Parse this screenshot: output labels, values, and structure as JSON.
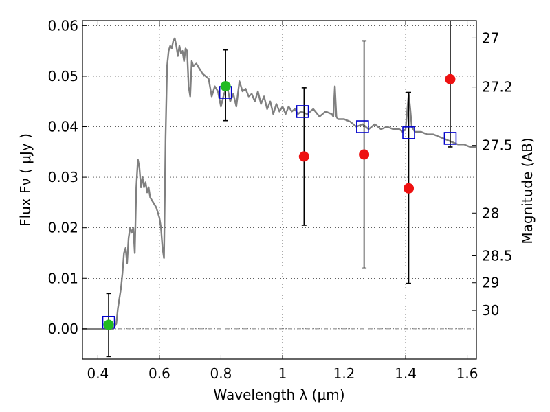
{
  "chart_data": {
    "type": "line",
    "xlabel": "Wavelength  λ (μm)",
    "ylabel": "Flux  Fν  ( μJy )",
    "y2label": "Magnitude (AB)",
    "xlim": [
      0.35,
      1.63
    ],
    "ylim": [
      -0.006,
      0.061
    ],
    "grid": true,
    "x_ticks": [
      {
        "value": 0.4,
        "label": "0.4"
      },
      {
        "value": 0.6,
        "label": "0.6"
      },
      {
        "value": 0.8,
        "label": "0.8"
      },
      {
        "value": 1.0,
        "label": "1"
      },
      {
        "value": 1.2,
        "label": "1.2"
      },
      {
        "value": 1.4,
        "label": "1.4"
      },
      {
        "value": 1.6,
        "label": "1.6"
      }
    ],
    "y_ticks": [
      {
        "value": 0.0,
        "label": "0.00"
      },
      {
        "value": 0.01,
        "label": "0.01"
      },
      {
        "value": 0.02,
        "label": "0.02"
      },
      {
        "value": 0.03,
        "label": "0.03"
      },
      {
        "value": 0.04,
        "label": "0.04"
      },
      {
        "value": 0.05,
        "label": "0.05"
      },
      {
        "value": 0.06,
        "label": "0.06"
      }
    ],
    "y2_ticks": [
      {
        "value": 27,
        "label": "27"
      },
      {
        "value": 27.2,
        "label": "27.2"
      },
      {
        "value": 27.5,
        "label": "27.5"
      },
      {
        "value": 28,
        "label": "28"
      },
      {
        "value": 28.5,
        "label": "28.5"
      },
      {
        "value": 29,
        "label": "29"
      },
      {
        "value": 30,
        "label": "30"
      }
    ],
    "series": [
      {
        "kind": "line",
        "color": "#808080",
        "points": [
          [
            0.35,
            0.0
          ],
          [
            0.45,
            0.0
          ],
          [
            0.46,
            0.001
          ],
          [
            0.465,
            0.004
          ],
          [
            0.47,
            0.006
          ],
          [
            0.475,
            0.008
          ],
          [
            0.48,
            0.011
          ],
          [
            0.485,
            0.015
          ],
          [
            0.49,
            0.016
          ],
          [
            0.495,
            0.013
          ],
          [
            0.5,
            0.018
          ],
          [
            0.505,
            0.02
          ],
          [
            0.51,
            0.019
          ],
          [
            0.515,
            0.02
          ],
          [
            0.52,
            0.015
          ],
          [
            0.525,
            0.028
          ],
          [
            0.53,
            0.0335
          ],
          [
            0.535,
            0.032
          ],
          [
            0.54,
            0.028
          ],
          [
            0.545,
            0.03
          ],
          [
            0.55,
            0.028
          ],
          [
            0.555,
            0.029
          ],
          [
            0.56,
            0.027
          ],
          [
            0.565,
            0.028
          ],
          [
            0.57,
            0.026
          ],
          [
            0.58,
            0.025
          ],
          [
            0.59,
            0.024
          ],
          [
            0.6,
            0.022
          ],
          [
            0.605,
            0.02
          ],
          [
            0.61,
            0.016
          ],
          [
            0.615,
            0.014
          ],
          [
            0.62,
            0.038
          ],
          [
            0.625,
            0.052
          ],
          [
            0.63,
            0.055
          ],
          [
            0.635,
            0.056
          ],
          [
            0.64,
            0.0555
          ],
          [
            0.645,
            0.057
          ],
          [
            0.65,
            0.0575
          ],
          [
            0.655,
            0.056
          ],
          [
            0.66,
            0.054
          ],
          [
            0.665,
            0.056
          ],
          [
            0.67,
            0.0545
          ],
          [
            0.675,
            0.055
          ],
          [
            0.68,
            0.053
          ],
          [
            0.685,
            0.0555
          ],
          [
            0.69,
            0.055
          ],
          [
            0.695,
            0.048
          ],
          [
            0.7,
            0.046
          ],
          [
            0.705,
            0.053
          ],
          [
            0.71,
            0.052
          ],
          [
            0.72,
            0.0525
          ],
          [
            0.73,
            0.0515
          ],
          [
            0.74,
            0.0505
          ],
          [
            0.75,
            0.05
          ],
          [
            0.76,
            0.0495
          ],
          [
            0.77,
            0.046
          ],
          [
            0.78,
            0.048
          ],
          [
            0.79,
            0.047
          ],
          [
            0.8,
            0.044
          ],
          [
            0.81,
            0.0465
          ],
          [
            0.82,
            0.048
          ],
          [
            0.83,
            0.045
          ],
          [
            0.84,
            0.0465
          ],
          [
            0.85,
            0.044
          ],
          [
            0.86,
            0.049
          ],
          [
            0.87,
            0.047
          ],
          [
            0.88,
            0.0475
          ],
          [
            0.89,
            0.046
          ],
          [
            0.9,
            0.0465
          ],
          [
            0.91,
            0.045
          ],
          [
            0.92,
            0.047
          ],
          [
            0.93,
            0.0445
          ],
          [
            0.94,
            0.046
          ],
          [
            0.95,
            0.0435
          ],
          [
            0.96,
            0.045
          ],
          [
            0.97,
            0.0425
          ],
          [
            0.98,
            0.0445
          ],
          [
            0.99,
            0.043
          ],
          [
            1.0,
            0.044
          ],
          [
            1.01,
            0.0425
          ],
          [
            1.02,
            0.044
          ],
          [
            1.03,
            0.043
          ],
          [
            1.04,
            0.0435
          ],
          [
            1.05,
            0.0425
          ],
          [
            1.06,
            0.043
          ],
          [
            1.08,
            0.0425
          ],
          [
            1.1,
            0.0435
          ],
          [
            1.12,
            0.042
          ],
          [
            1.14,
            0.043
          ],
          [
            1.16,
            0.0425
          ],
          [
            1.165,
            0.042
          ],
          [
            1.17,
            0.048
          ],
          [
            1.175,
            0.042
          ],
          [
            1.18,
            0.0415
          ],
          [
            1.2,
            0.0415
          ],
          [
            1.22,
            0.041
          ],
          [
            1.24,
            0.04
          ],
          [
            1.26,
            0.0405
          ],
          [
            1.28,
            0.0395
          ],
          [
            1.3,
            0.0405
          ],
          [
            1.32,
            0.0395
          ],
          [
            1.34,
            0.04
          ],
          [
            1.36,
            0.0395
          ],
          [
            1.38,
            0.0395
          ],
          [
            1.39,
            0.039
          ],
          [
            1.4,
            0.0395
          ],
          [
            1.405,
            0.043
          ],
          [
            1.41,
            0.0465
          ],
          [
            1.415,
            0.0435
          ],
          [
            1.42,
            0.04
          ],
          [
            1.43,
            0.039
          ],
          [
            1.45,
            0.039
          ],
          [
            1.47,
            0.0385
          ],
          [
            1.49,
            0.0385
          ],
          [
            1.51,
            0.038
          ],
          [
            1.53,
            0.0375
          ],
          [
            1.55,
            0.037
          ],
          [
            1.57,
            0.0365
          ],
          [
            1.59,
            0.0365
          ],
          [
            1.61,
            0.036
          ],
          [
            1.63,
            0.036
          ]
        ]
      },
      {
        "kind": "open-square",
        "color": "#0000cc",
        "points": [
          [
            0.435,
            0.0013
          ],
          [
            0.815,
            0.0468
          ],
          [
            1.065,
            0.043
          ],
          [
            1.26,
            0.04
          ],
          [
            1.41,
            0.0388
          ],
          [
            1.545,
            0.0377
          ]
        ]
      },
      {
        "kind": "filled-circle",
        "color": "#ee1111",
        "points": [
          [
            1.07,
            0.0341
          ],
          [
            1.265,
            0.0345
          ],
          [
            1.41,
            0.0278
          ],
          [
            1.545,
            0.0494
          ]
        ]
      },
      {
        "kind": "filled-circle",
        "color": "#22bb22",
        "points": [
          [
            0.435,
            0.0008
          ],
          [
            0.815,
            0.048
          ]
        ]
      },
      {
        "kind": "errorbar",
        "color": "#000000",
        "bars": [
          {
            "x": 0.435,
            "low": -0.0055,
            "high": 0.007
          },
          {
            "x": 0.815,
            "low": 0.0412,
            "high": 0.0552
          },
          {
            "x": 1.07,
            "low": 0.0205,
            "high": 0.0477
          },
          {
            "x": 1.265,
            "low": 0.012,
            "high": 0.057
          },
          {
            "x": 1.41,
            "low": 0.009,
            "high": 0.0468
          },
          {
            "x": 1.545,
            "low": 0.036,
            "high": 0.061
          }
        ]
      }
    ]
  }
}
